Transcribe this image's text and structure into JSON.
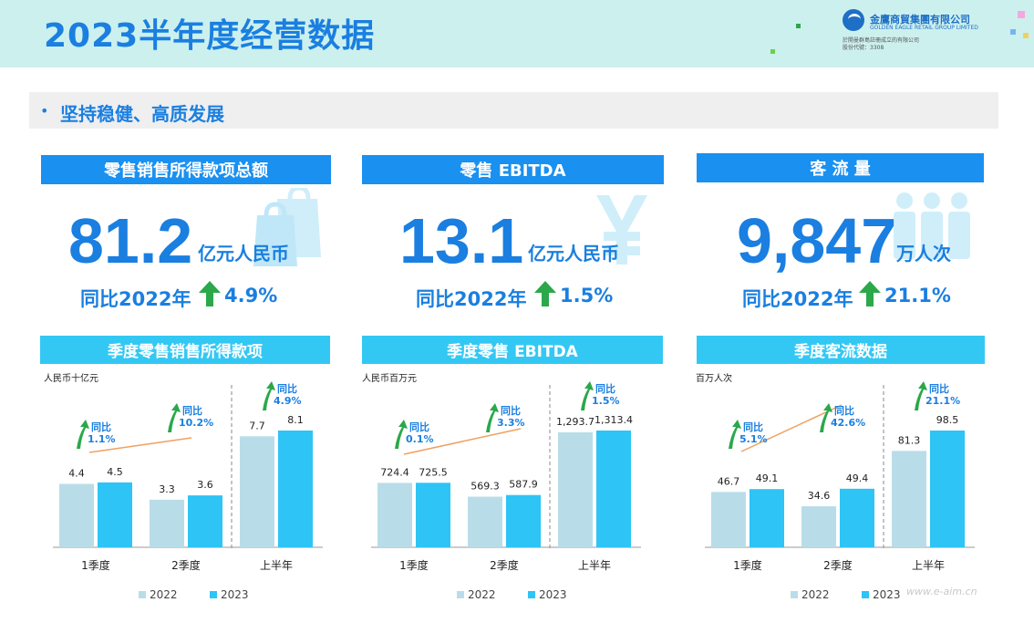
{
  "page": {
    "title": "2023半年度经营数据"
  },
  "logo": {
    "name_cn": "金鷹商貿集團有限公司",
    "name_en": "GOLDEN EAGLE RETAIL GROUP LIMITED",
    "sub1": "於開曼群島註冊成立的有限公司",
    "sub2": "股份代號：3308"
  },
  "subtitle": "坚持稳健、高质发展",
  "colors": {
    "y2022": "#b9dde8",
    "y2023": "#2ec4f5",
    "accent": "#1a7fe0",
    "arrow": "#2aa84a",
    "trend": "#f0a060"
  },
  "kpis": [
    {
      "title": "零售销售所得款项总额",
      "value": "81.2",
      "unit": "亿元人民币",
      "yoy_label": "同比2022年",
      "yoy_rate": "4.9%",
      "icon": "shopping-bag-icon"
    },
    {
      "title": "零售 EBITDA",
      "value": "13.1",
      "unit": "亿元人民币",
      "yoy_label": "同比2022年",
      "yoy_rate": "1.5%",
      "icon": "yuan-icon"
    },
    {
      "title": "客 流 量",
      "value": "9,847",
      "unit": "万人次",
      "yoy_label": "同比2022年",
      "yoy_rate": "21.1%",
      "icon": "people-icon"
    }
  ],
  "legend": {
    "y2022": "2022",
    "y2023": "2023"
  },
  "chart_data": [
    {
      "type": "bar",
      "title": "季度零售销售所得款项",
      "unit_label": "人民币十亿元",
      "categories": [
        "1季度",
        "2季度",
        "上半年"
      ],
      "series": [
        {
          "name": "2022",
          "values": [
            4.4,
            3.3,
            7.7
          ],
          "labels": [
            "4.4",
            "3.3",
            "7.7"
          ]
        },
        {
          "name": "2023",
          "values": [
            4.5,
            3.6,
            8.1
          ],
          "labels": [
            "4.5",
            "3.6",
            "8.1"
          ]
        }
      ],
      "annotations": [
        {
          "label": "同比",
          "rate": "1.1%"
        },
        {
          "label": "同比",
          "rate": "10.2%"
        },
        {
          "label": "同比",
          "rate": "4.9%"
        }
      ]
    },
    {
      "type": "bar",
      "title": "季度零售 EBITDA",
      "unit_label": "人民币百万元",
      "categories": [
        "1季度",
        "2季度",
        "上半年"
      ],
      "series": [
        {
          "name": "2022",
          "values": [
            724.4,
            569.3,
            1293.7
          ],
          "labels": [
            "724.4",
            "569.3",
            "1,293.7"
          ]
        },
        {
          "name": "2023",
          "values": [
            725.5,
            587.9,
            1313.4
          ],
          "labels": [
            "725.5",
            "587.9",
            "1,313.4"
          ]
        }
      ],
      "annotations": [
        {
          "label": "同比",
          "rate": "0.1%"
        },
        {
          "label": "同比",
          "rate": "3.3%"
        },
        {
          "label": "同比",
          "rate": "1.5%"
        }
      ]
    },
    {
      "type": "bar",
      "title": "季度客流数据",
      "unit_label": "百万人次",
      "categories": [
        "1季度",
        "2季度",
        "上半年"
      ],
      "series": [
        {
          "name": "2022",
          "values": [
            46.7,
            34.6,
            81.3
          ],
          "labels": [
            "46.7",
            "34.6",
            "81.3"
          ]
        },
        {
          "name": "2023",
          "values": [
            49.1,
            49.4,
            98.5
          ],
          "labels": [
            "49.1",
            "49.4",
            "98.5"
          ]
        }
      ],
      "annotations": [
        {
          "label": "同比",
          "rate": "5.1%"
        },
        {
          "label": "同比",
          "rate": "42.6%"
        },
        {
          "label": "同比",
          "rate": "21.1%"
        }
      ]
    }
  ]
}
